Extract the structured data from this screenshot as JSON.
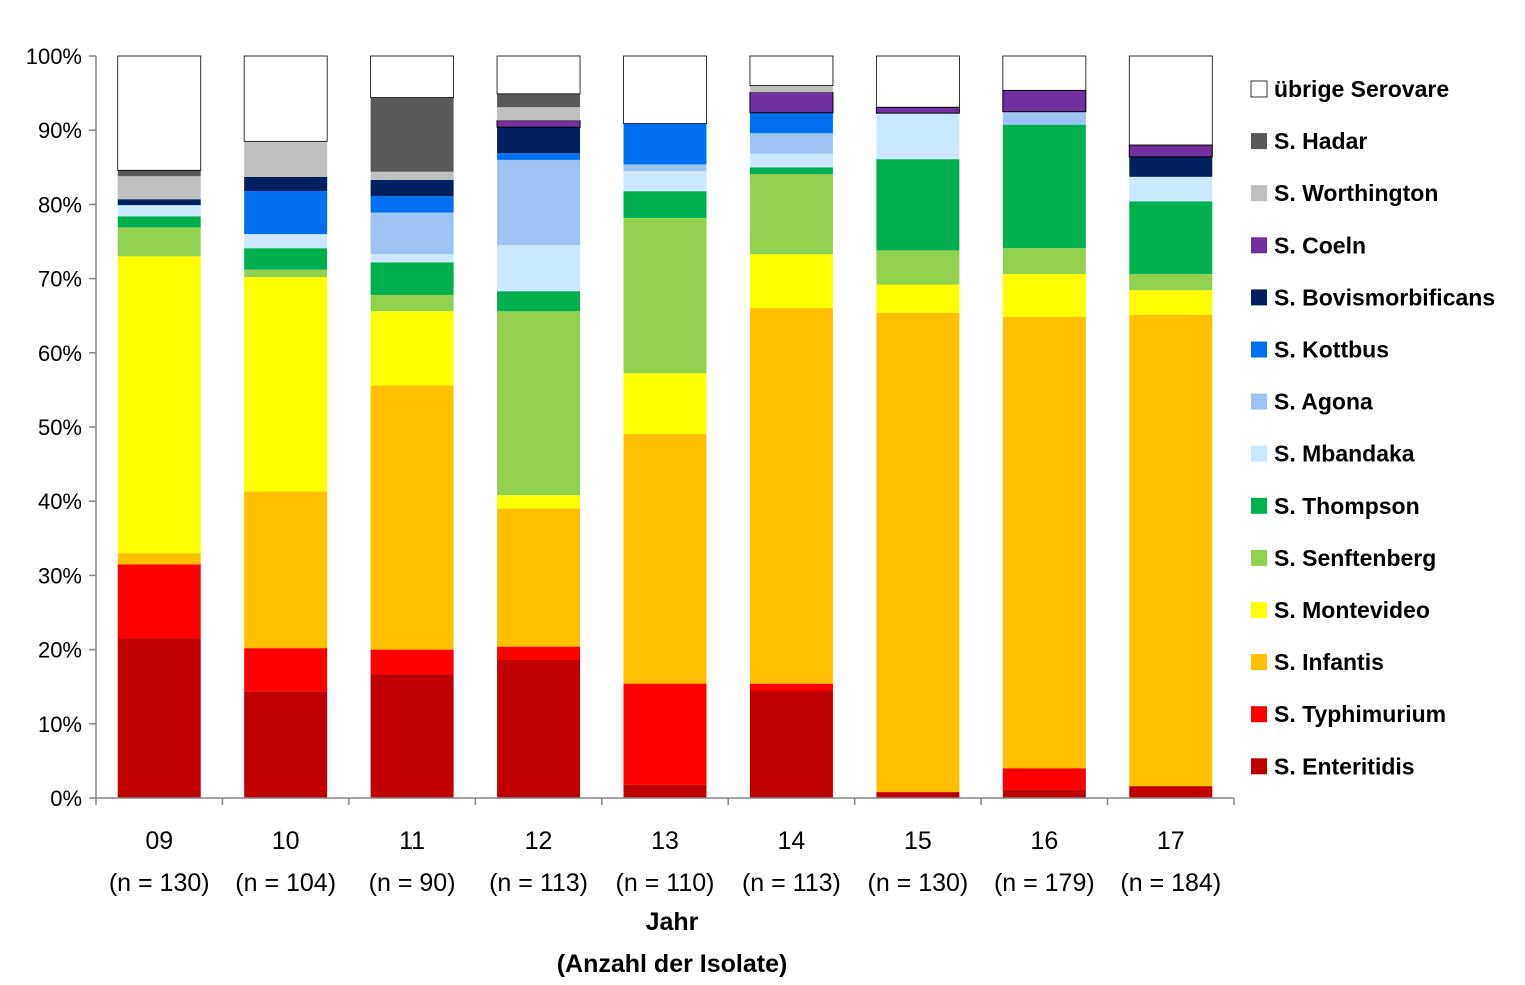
{
  "chart_data": {
    "type": "bar",
    "stacked": true,
    "categories": [
      "09",
      "10",
      "11",
      "12",
      "13",
      "14",
      "15",
      "16",
      "17"
    ],
    "category_counts": [
      "(n = 130)",
      "(n = 104)",
      "(n = 90)",
      "(n = 113)",
      "(n = 110)",
      "(n = 113)",
      "(n = 130)",
      "(n = 179)",
      "(n = 184)"
    ],
    "xlabel": "Jahr",
    "xlabel_sub": "(Anzahl der Isolate)",
    "ylabel": "",
    "ylim": [
      0,
      100
    ],
    "yticks": [
      "0%",
      "10%",
      "20%",
      "30%",
      "40%",
      "50%",
      "60%",
      "70%",
      "80%",
      "90%",
      "100%"
    ],
    "grid": false,
    "legend_position": "right",
    "series": [
      {
        "name": "S. Enteritidis",
        "color": "#C00000",
        "values": [
          21.5,
          14.4,
          16.7,
          18.6,
          1.8,
          14.2,
          0.8,
          1.1,
          1.6
        ]
      },
      {
        "name": "S. Typhimurium",
        "color": "#FF0000",
        "values": [
          10.0,
          5.8,
          3.3,
          1.8,
          13.6,
          0.9,
          0.0,
          2.8,
          0.0
        ]
      },
      {
        "name": "S. Infantis",
        "color": "#FFC000",
        "values": [
          1.5,
          21.1,
          35.6,
          18.6,
          33.6,
          49.6,
          64.6,
          59.2,
          63.6
        ]
      },
      {
        "name": "S. Montevideo",
        "color": "#FFFF00",
        "values": [
          40.0,
          28.9,
          10.0,
          1.8,
          8.2,
          7.1,
          3.8,
          5.6,
          3.3
        ]
      },
      {
        "name": "S. Senftenberg",
        "color": "#92D050",
        "values": [
          3.9,
          1.0,
          2.2,
          24.8,
          20.9,
          10.6,
          4.6,
          3.4,
          2.2
        ]
      },
      {
        "name": "S. Thompson",
        "color": "#00B050",
        "values": [
          1.5,
          2.9,
          4.4,
          2.7,
          3.6,
          0.9,
          12.3,
          16.2,
          9.8
        ]
      },
      {
        "name": "S. Mbandaka",
        "color": "#CCE8FF",
        "values": [
          1.5,
          1.9,
          1.1,
          6.2,
          2.7,
          1.8,
          6.2,
          0.0,
          3.3
        ]
      },
      {
        "name": "S. Agona",
        "color": "#9DC3F5",
        "values": [
          0.0,
          0.0,
          5.6,
          11.5,
          0.9,
          2.7,
          0.0,
          1.7,
          0.0
        ]
      },
      {
        "name": "S. Kottbus",
        "color": "#0070F0",
        "values": [
          0.0,
          5.8,
          2.2,
          0.9,
          5.5,
          2.7,
          0.0,
          0.0,
          0.0
        ]
      },
      {
        "name": "S. Bovismorbificans",
        "color": "#002060",
        "values": [
          0.8,
          1.9,
          2.2,
          3.5,
          0.0,
          0.0,
          0.0,
          0.0,
          2.7
        ]
      },
      {
        "name": "S. Coeln",
        "color": "#7030A0",
        "values": [
          0.0,
          0.0,
          0.0,
          0.9,
          0.0,
          2.7,
          0.8,
          2.8,
          1.6
        ]
      },
      {
        "name": "S. Worthington",
        "color": "#BFBFBF",
        "values": [
          3.1,
          4.8,
          1.1,
          1.8,
          0.0,
          0.9,
          0.0,
          0.0,
          0.0
        ]
      },
      {
        "name": "S. Hadar",
        "color": "#595959",
        "values": [
          0.8,
          0.0,
          10.0,
          1.8,
          0.0,
          0.0,
          0.0,
          0.0,
          0.0
        ]
      },
      {
        "name": "übrige Serovare",
        "color": "#FFFFFF",
        "values": [
          15.4,
          11.5,
          5.6,
          5.1,
          9.1,
          3.9,
          6.9,
          4.5,
          12.0
        ]
      }
    ]
  }
}
